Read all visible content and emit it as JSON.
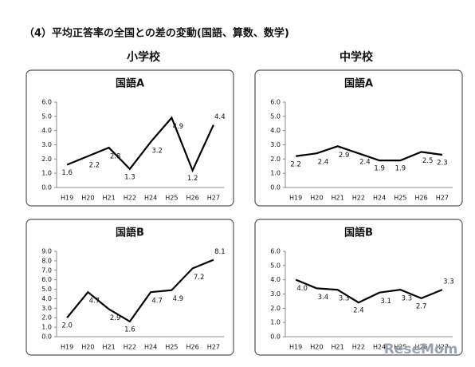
{
  "page": {
    "title": "（4）平均正答率の全国との差の変動(国語、算数、数学)",
    "headers": [
      "小学校",
      "中学校"
    ],
    "watermark": "ReseMom"
  },
  "chart_data": [
    {
      "type": "line",
      "title": "国語A",
      "categories": [
        "H19",
        "H20",
        "H21",
        "H22",
        "H24",
        "H25",
        "H26",
        "H27"
      ],
      "series": [
        {
          "color": "#000000",
          "values": [
            1.6,
            2.2,
            2.8,
            1.3,
            3.2,
            4.9,
            1.2,
            4.4
          ],
          "value_labels": [
            "1.6",
            "2.2",
            "2.8",
            "1.3",
            "3.2",
            "4.9",
            "1.2",
            "4.4"
          ]
        }
      ],
      "ylim": [
        0,
        6
      ],
      "yticks": [
        {
          "value": 0,
          "label": "0.0"
        },
        {
          "value": 1,
          "label": "1.0"
        },
        {
          "value": 2,
          "label": "2.0"
        },
        {
          "value": 3,
          "label": "3.0"
        },
        {
          "value": 4,
          "label": "4.0"
        },
        {
          "value": 5,
          "label": "5.0"
        },
        {
          "value": 6,
          "label": "6.0"
        }
      ]
    },
    {
      "type": "line",
      "title": "国語A",
      "categories": [
        "H19",
        "H20",
        "H21",
        "H22",
        "H24",
        "H25",
        "H26",
        "H27"
      ],
      "series": [
        {
          "color": "#000000",
          "values": [
            2.2,
            2.4,
            2.9,
            2.4,
            1.9,
            1.9,
            2.5,
            2.3
          ],
          "value_labels": [
            "2.2",
            "2.4",
            "2.9",
            "2.4",
            "1.9",
            "1.9",
            "2.5",
            "2.3"
          ]
        }
      ],
      "ylim": [
        0,
        6
      ],
      "yticks": [
        {
          "value": 0,
          "label": "0.0"
        },
        {
          "value": 1,
          "label": "1.0"
        },
        {
          "value": 2,
          "label": "2.0"
        },
        {
          "value": 3,
          "label": "3.0"
        },
        {
          "value": 4,
          "label": "4.0"
        },
        {
          "value": 5,
          "label": "5.0"
        },
        {
          "value": 6,
          "label": "6.0"
        }
      ]
    },
    {
      "type": "line",
      "title": "国語B",
      "categories": [
        "H19",
        "H20",
        "H21",
        "H22",
        "H24",
        "H25",
        "H26",
        "H27"
      ],
      "series": [
        {
          "color": "#000000",
          "values": [
            2.0,
            4.7,
            2.9,
            1.6,
            4.7,
            4.9,
            7.2,
            8.1
          ],
          "value_labels": [
            "2.0",
            "4.7",
            "2.9",
            "1.6",
            "4.7",
            "4.9",
            "7.2",
            "8.1"
          ]
        }
      ],
      "ylim": [
        0,
        9
      ],
      "yticks": [
        {
          "value": 0,
          "label": "0.0"
        },
        {
          "value": 1,
          "label": "1.0"
        },
        {
          "value": 2,
          "label": "2.0"
        },
        {
          "value": 3,
          "label": "3.0"
        },
        {
          "value": 4,
          "label": "4.0"
        },
        {
          "value": 5,
          "label": "5.0"
        },
        {
          "value": 6,
          "label": "6.0"
        },
        {
          "value": 7,
          "label": "7.0"
        },
        {
          "value": 8,
          "label": "8.0"
        },
        {
          "value": 9,
          "label": "9.0"
        }
      ]
    },
    {
      "type": "line",
      "title": "国語B",
      "categories": [
        "H19",
        "H20",
        "H21",
        "H22",
        "H24",
        "H25",
        "H26",
        "H27"
      ],
      "series": [
        {
          "color": "#000000",
          "values": [
            4.0,
            3.4,
            3.3,
            2.4,
            3.1,
            3.3,
            2.7,
            3.3
          ],
          "value_labels": [
            "4.0",
            "3.4",
            "3.3",
            "2.4",
            "3.1",
            "3.3",
            "2.7",
            "3.3"
          ]
        }
      ],
      "ylim": [
        0,
        6
      ],
      "yticks": [
        {
          "value": 0,
          "label": "0.0"
        },
        {
          "value": 1,
          "label": "1.0"
        },
        {
          "value": 2,
          "label": "2.0"
        },
        {
          "value": 3,
          "label": "3.0"
        },
        {
          "value": 4,
          "label": "4.0"
        },
        {
          "value": 5,
          "label": "5.0"
        },
        {
          "value": 6,
          "label": "6.0"
        }
      ]
    }
  ]
}
